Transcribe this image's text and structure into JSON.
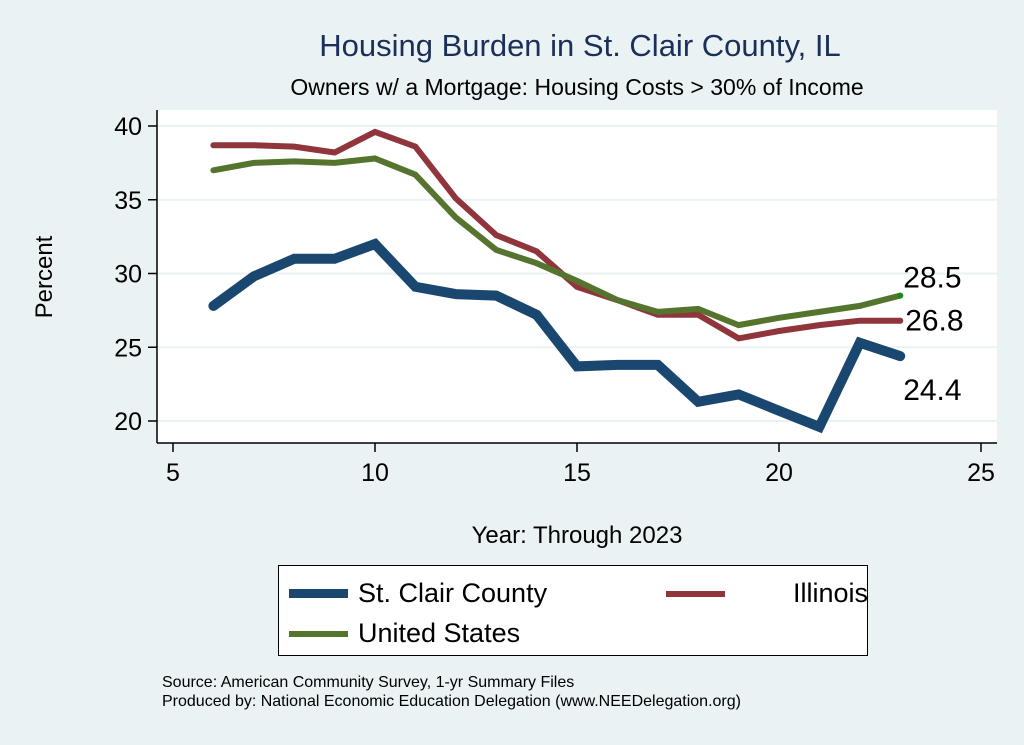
{
  "chart_data": {
    "type": "line",
    "title": "Housing Burden in St. Clair County, IL",
    "subtitle": "Owners w/ a Mortgage: Housing Costs > 30% of Income",
    "xlabel": "Year: Through 2023",
    "ylabel": "Percent",
    "xlim": [
      5,
      25
    ],
    "ylim": [
      19,
      41
    ],
    "xticks": [
      5,
      10,
      15,
      20,
      25
    ],
    "yticks": [
      20,
      25,
      30,
      35,
      40
    ],
    "grid": "horizontal",
    "legend_position": "bottom",
    "x": [
      6,
      7,
      8,
      9,
      10,
      11,
      12,
      13,
      14,
      15,
      16,
      17,
      18,
      19,
      20,
      21,
      22,
      23
    ],
    "series": [
      {
        "name": "St. Clair County",
        "color": "#1a476f",
        "values": [
          27.8,
          29.8,
          31.0,
          31.0,
          32.0,
          29.1,
          28.6,
          28.5,
          27.2,
          23.7,
          23.8,
          23.8,
          21.3,
          21.8,
          20.7,
          19.6,
          25.3,
          24.4
        ],
        "end_label": "24.4"
      },
      {
        "name": "Illinois",
        "color": "#90353b",
        "values": [
          38.7,
          38.7,
          38.6,
          38.2,
          39.6,
          38.6,
          35.1,
          32.6,
          31.5,
          29.1,
          28.2,
          27.2,
          27.2,
          25.6,
          26.1,
          26.5,
          26.8,
          26.8
        ],
        "end_label": "26.8"
      },
      {
        "name": "United States",
        "color": "#55752f",
        "values": [
          37.0,
          37.5,
          37.6,
          37.5,
          37.8,
          36.7,
          33.8,
          31.6,
          30.7,
          29.5,
          28.2,
          27.4,
          27.6,
          26.5,
          27.0,
          27.4,
          27.8,
          28.5
        ],
        "end_label": "28.5"
      }
    ],
    "notes": [
      "Source: American Community Survey, 1-yr Summary Files",
      "Produced by: National Economic Education Delegation (www.NEEDelegation.org)"
    ]
  },
  "legend": {
    "items": [
      {
        "label": "St. Clair County"
      },
      {
        "label": "Illinois"
      },
      {
        "label": "United States"
      }
    ]
  }
}
